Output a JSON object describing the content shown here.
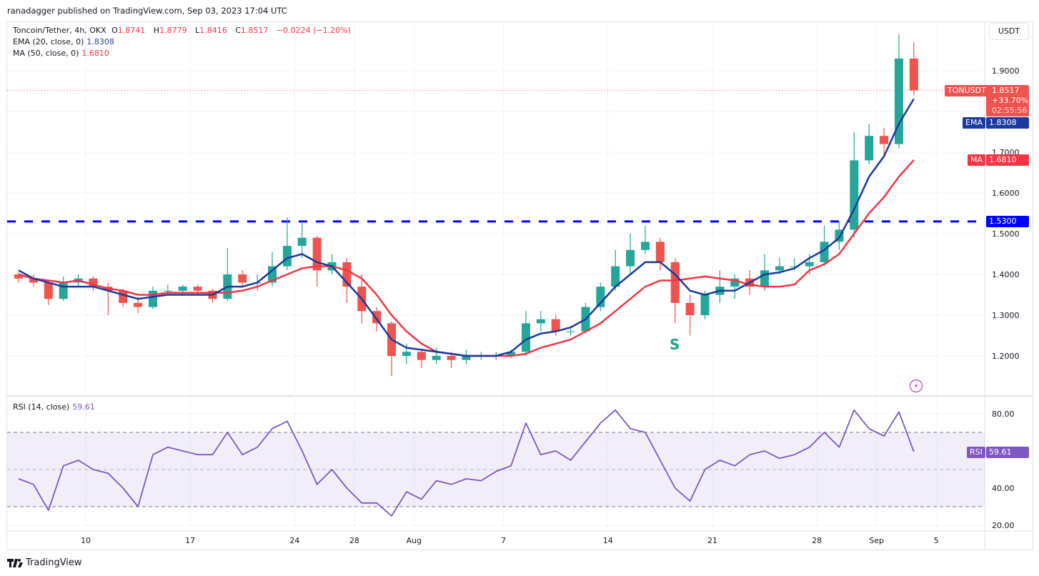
{
  "attribution": "ranadagger published on TradingView.com, Sep 03, 2023 17:04 UTC",
  "legend": {
    "symbol": "Toncoin/Tether, 4h, OKX",
    "o_label": "O",
    "open": "1.8741",
    "h_label": "H",
    "high": "1.8779",
    "l_label": "L",
    "low": "1.8416",
    "c_label": "C",
    "close": "1.8517",
    "change": "−0.0224 (−1.20%)",
    "ema_label": "EMA (20, close, 0)",
    "ema_value": "1.8308",
    "ma_label": "MA (50, close, 0)",
    "ma_value": "1.6810",
    "rsi_label": "RSI (14, close)",
    "rsi_value": "59.61"
  },
  "price_axis": {
    "unit": "USDT",
    "ticks": [
      "1.2000",
      "1.3000",
      "1.4000",
      "1.5000",
      "1.6000",
      "1.7000",
      "1.9000"
    ],
    "tick_values": [
      1.2,
      1.3,
      1.4,
      1.5,
      1.6,
      1.7,
      1.9
    ],
    "grid_values": [
      1.2,
      1.3,
      1.4,
      1.5,
      1.6,
      1.7,
      1.8,
      1.9
    ],
    "range": [
      1.11,
      2.01
    ]
  },
  "tags": {
    "symbol_tag": "TONUSDT",
    "last_price": "1.8517",
    "last_change": "+33.70%",
    "countdown": "02:55:56",
    "ema_tag": "EMA",
    "ema_value": "1.8308",
    "ma_tag": "MA",
    "ma_value": "1.6810",
    "level_value": "1.5300",
    "rsi_tag": "RSI",
    "rsi_value": "59.61"
  },
  "rsi_axis": {
    "ticks": [
      "20.00",
      "40.00",
      "80.00"
    ],
    "tick_values": [
      20,
      40,
      80
    ],
    "range": [
      15,
      90
    ],
    "upper": 70,
    "middle": 50,
    "lower": 30
  },
  "time_axis": {
    "labels": [
      "10",
      "17",
      "24",
      "28",
      "Aug",
      "7",
      "14",
      "21",
      "28",
      "Sep",
      "5"
    ],
    "label_dates": [
      "2023-07-10",
      "2023-07-17",
      "2023-07-24",
      "2023-07-28",
      "2023-08-01",
      "2023-08-07",
      "2023-08-14",
      "2023-08-21",
      "2023-08-28",
      "2023-09-01",
      "2023-09-05"
    ]
  },
  "annotation": {
    "text": "S",
    "date": "2023-08-19"
  },
  "colors": {
    "up": "#26a69a",
    "down": "#ef5350",
    "ema": "#1a3a9e",
    "ma": "#f23645",
    "level": "#0000ff",
    "rsi": "#7e57c2"
  },
  "logo": "TradingView",
  "chart_data": {
    "type": "candlestick",
    "start_date": "2023-07-05",
    "interval_shown": "daily approximation of 4h candles",
    "support_resistance_level": 1.53,
    "ohlc": [
      [
        1.4,
        1.405,
        1.38,
        1.39
      ],
      [
        1.39,
        1.4,
        1.37,
        1.38
      ],
      [
        1.38,
        1.385,
        1.325,
        1.34
      ],
      [
        1.34,
        1.395,
        1.335,
        1.38
      ],
      [
        1.38,
        1.4,
        1.37,
        1.39
      ],
      [
        1.39,
        1.395,
        1.36,
        1.37
      ],
      [
        1.37,
        1.38,
        1.3,
        1.36
      ],
      [
        1.36,
        1.365,
        1.32,
        1.33
      ],
      [
        1.33,
        1.345,
        1.305,
        1.32
      ],
      [
        1.32,
        1.37,
        1.315,
        1.36
      ],
      [
        1.36,
        1.375,
        1.35,
        1.36
      ],
      [
        1.36,
        1.375,
        1.35,
        1.37
      ],
      [
        1.37,
        1.375,
        1.35,
        1.36
      ],
      [
        1.36,
        1.365,
        1.33,
        1.34
      ],
      [
        1.34,
        1.465,
        1.335,
        1.4
      ],
      [
        1.4,
        1.41,
        1.37,
        1.38
      ],
      [
        1.38,
        1.4,
        1.36,
        1.38
      ],
      [
        1.38,
        1.455,
        1.37,
        1.42
      ],
      [
        1.42,
        1.54,
        1.41,
        1.47
      ],
      [
        1.47,
        1.53,
        1.44,
        1.49
      ],
      [
        1.49,
        1.495,
        1.37,
        1.41
      ],
      [
        1.41,
        1.45,
        1.4,
        1.43
      ],
      [
        1.43,
        1.44,
        1.33,
        1.37
      ],
      [
        1.37,
        1.4,
        1.28,
        1.31
      ],
      [
        1.31,
        1.32,
        1.26,
        1.28
      ],
      [
        1.28,
        1.285,
        1.15,
        1.2
      ],
      [
        1.2,
        1.23,
        1.18,
        1.21
      ],
      [
        1.21,
        1.215,
        1.17,
        1.19
      ],
      [
        1.19,
        1.22,
        1.18,
        1.2
      ],
      [
        1.2,
        1.21,
        1.17,
        1.19
      ],
      [
        1.19,
        1.215,
        1.18,
        1.2
      ],
      [
        1.2,
        1.21,
        1.19,
        1.2
      ],
      [
        1.2,
        1.21,
        1.19,
        1.2
      ],
      [
        1.2,
        1.215,
        1.195,
        1.21
      ],
      [
        1.21,
        1.31,
        1.2,
        1.28
      ],
      [
        1.28,
        1.31,
        1.26,
        1.29
      ],
      [
        1.29,
        1.3,
        1.25,
        1.26
      ],
      [
        1.26,
        1.27,
        1.25,
        1.26
      ],
      [
        1.26,
        1.33,
        1.255,
        1.32
      ],
      [
        1.32,
        1.38,
        1.31,
        1.37
      ],
      [
        1.37,
        1.46,
        1.36,
        1.42
      ],
      [
        1.42,
        1.5,
        1.4,
        1.46
      ],
      [
        1.46,
        1.52,
        1.45,
        1.48
      ],
      [
        1.48,
        1.49,
        1.41,
        1.43
      ],
      [
        1.43,
        1.44,
        1.28,
        1.33
      ],
      [
        1.33,
        1.35,
        1.25,
        1.3
      ],
      [
        1.3,
        1.36,
        1.29,
        1.35
      ],
      [
        1.35,
        1.41,
        1.33,
        1.37
      ],
      [
        1.37,
        1.4,
        1.34,
        1.39
      ],
      [
        1.39,
        1.41,
        1.35,
        1.37
      ],
      [
        1.37,
        1.45,
        1.36,
        1.41
      ],
      [
        1.41,
        1.44,
        1.4,
        1.42
      ],
      [
        1.42,
        1.44,
        1.41,
        1.42
      ],
      [
        1.42,
        1.45,
        1.4,
        1.43
      ],
      [
        1.43,
        1.52,
        1.42,
        1.48
      ],
      [
        1.48,
        1.53,
        1.46,
        1.51
      ],
      [
        1.51,
        1.75,
        1.49,
        1.68
      ],
      [
        1.68,
        1.77,
        1.67,
        1.74
      ],
      [
        1.74,
        1.76,
        1.69,
        1.72
      ],
      [
        1.72,
        1.99,
        1.71,
        1.93
      ],
      [
        1.93,
        1.97,
        1.84,
        1.8517
      ]
    ],
    "ema20": [
      1.41,
      1.39,
      1.38,
      1.37,
      1.37,
      1.37,
      1.36,
      1.35,
      1.34,
      1.345,
      1.35,
      1.35,
      1.35,
      1.35,
      1.37,
      1.37,
      1.38,
      1.41,
      1.44,
      1.45,
      1.43,
      1.42,
      1.38,
      1.34,
      1.29,
      1.24,
      1.22,
      1.215,
      1.21,
      1.205,
      1.2,
      1.2,
      1.2,
      1.21,
      1.24,
      1.255,
      1.26,
      1.27,
      1.29,
      1.33,
      1.37,
      1.4,
      1.43,
      1.43,
      1.4,
      1.36,
      1.35,
      1.36,
      1.36,
      1.38,
      1.4,
      1.405,
      1.415,
      1.44,
      1.46,
      1.49,
      1.56,
      1.64,
      1.69,
      1.77,
      1.8308
    ],
    "ma50": [
      1.4,
      1.39,
      1.385,
      1.38,
      1.385,
      1.375,
      1.365,
      1.36,
      1.35,
      1.35,
      1.355,
      1.355,
      1.355,
      1.355,
      1.355,
      1.36,
      1.37,
      1.385,
      1.4,
      1.415,
      1.42,
      1.42,
      1.41,
      1.39,
      1.35,
      1.3,
      1.26,
      1.23,
      1.21,
      1.205,
      1.2,
      1.2,
      1.2,
      1.2,
      1.205,
      1.22,
      1.23,
      1.24,
      1.26,
      1.28,
      1.31,
      1.34,
      1.37,
      1.385,
      1.385,
      1.39,
      1.395,
      1.39,
      1.385,
      1.375,
      1.37,
      1.37,
      1.375,
      1.41,
      1.425,
      1.45,
      1.5,
      1.55,
      1.59,
      1.64,
      1.681
    ],
    "rsi": [
      45,
      42,
      28,
      52,
      55,
      50,
      48,
      40,
      30,
      58,
      62,
      60,
      58,
      58,
      70,
      58,
      62,
      72,
      76,
      60,
      42,
      50,
      40,
      32,
      32,
      25,
      38,
      34,
      44,
      42,
      45,
      44,
      49,
      52,
      75,
      58,
      60,
      55,
      65,
      75,
      82,
      72,
      70,
      55,
      40,
      33,
      50,
      55,
      52,
      58,
      60,
      56,
      58,
      62,
      70,
      62,
      82,
      72,
      68,
      81,
      59.61
    ]
  }
}
